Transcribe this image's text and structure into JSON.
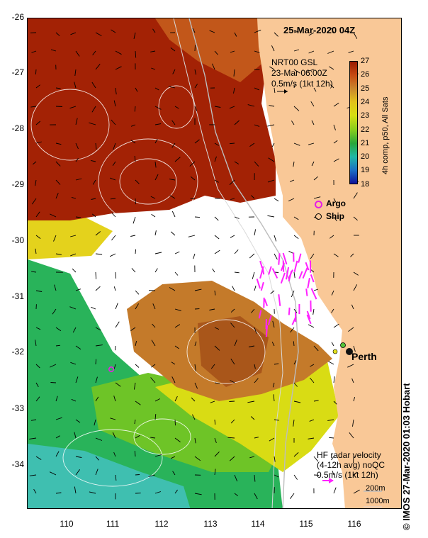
{
  "title": "25-Mar-2020 04Z",
  "axes": {
    "y_ticks": [
      "-26",
      "-27",
      "-28",
      "-29",
      "-30",
      "-31",
      "-32",
      "-33",
      "-34"
    ],
    "x_ticks": [
      "110",
      "111",
      "112",
      "113",
      "114",
      "115",
      "116"
    ],
    "lon_range": [
      109.2,
      117.0
    ],
    "lat_range": [
      -34.8,
      -26.0
    ]
  },
  "current_legend": {
    "line1": "NRT00 GSL",
    "line2": "23-Mar 06:00Z",
    "line3": "0.5m/s (1kt 12h)"
  },
  "colorbar": {
    "ticks": [
      "27",
      "26",
      "25",
      "24",
      "23",
      "22",
      "21",
      "20",
      "19",
      "18"
    ],
    "caption": "4h comp, p50, All Sats",
    "colors": [
      "#9a1a00",
      "#c64a12",
      "#c9862c",
      "#e2c21a",
      "#d7de12",
      "#86cc1c",
      "#2aa63a",
      "#22b7a6",
      "#1c6fc4",
      "#10129a"
    ]
  },
  "symbols_legend": {
    "argo": "Argo",
    "ship": "Ship",
    "argo_color": "#e61ee6"
  },
  "places": {
    "perth": "Perth"
  },
  "radar_legend": {
    "line1": "HF radar velocity",
    "line2": "(4-12h avg) noQC",
    "line3": "0.5m/s (1kt 12h)",
    "arrow_color": "#ff22ff"
  },
  "depth_legend": {
    "line1": "200m",
    "line2": "1000m"
  },
  "credit": "© IMOS 27-Mar-2020 01:03 Hobart",
  "land_color": "#f9c897"
}
